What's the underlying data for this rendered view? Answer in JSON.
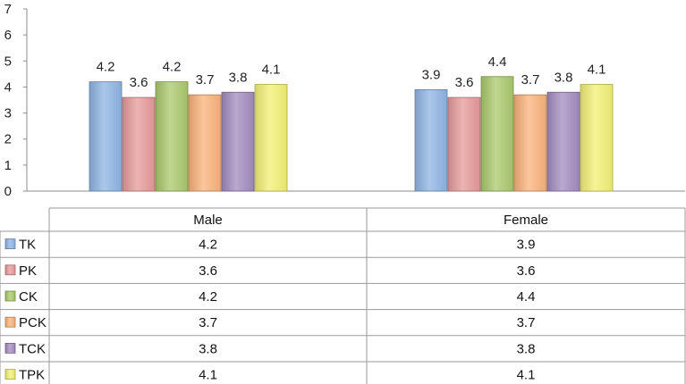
{
  "chart_data": {
    "type": "bar",
    "categories": [
      "Male",
      "Female"
    ],
    "series": [
      {
        "name": "TK",
        "values": [
          4.2,
          3.9
        ],
        "color": "#8eb4e3"
      },
      {
        "name": "PK",
        "values": [
          3.6,
          3.6
        ],
        "color": "#e6999a"
      },
      {
        "name": "CK",
        "values": [
          4.2,
          4.4
        ],
        "color": "#a9c86b"
      },
      {
        "name": "PCK",
        "values": [
          3.7,
          3.7
        ],
        "color": "#f9b27a"
      },
      {
        "name": "TCK",
        "values": [
          3.8,
          3.8
        ],
        "color": "#a38bbf"
      },
      {
        "name": "TPK",
        "values": [
          4.1,
          4.1
        ],
        "color": "#f2f073"
      }
    ],
    "y_ticks": [
      "0",
      "1",
      "2",
      "3",
      "4",
      "5",
      "6",
      "7"
    ],
    "ylim": [
      0,
      7
    ],
    "grid": false,
    "data_labels": true,
    "legend": "data-table-below"
  }
}
